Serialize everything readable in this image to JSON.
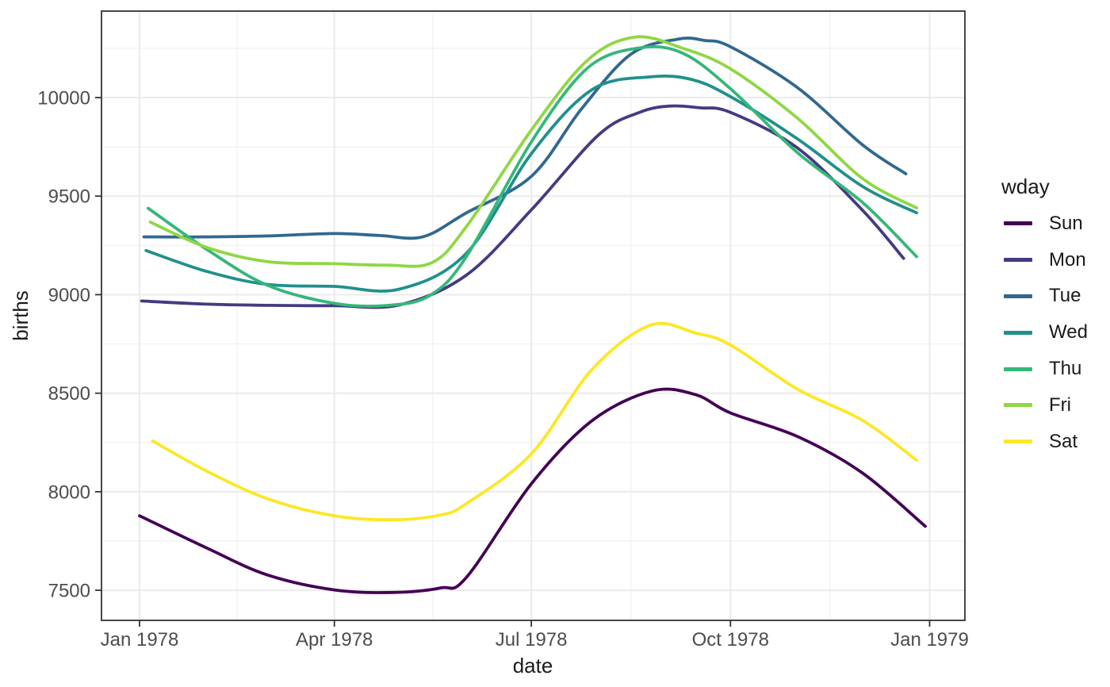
{
  "chart_data": {
    "type": "line",
    "title": "",
    "xlabel": "date",
    "ylabel": "births",
    "legend_title": "wday",
    "legend_position": "right",
    "grid": true,
    "panel": {
      "background": "#FFFFFF",
      "border_color": "#333333",
      "grid_major_color": "#EBEBEB",
      "grid_minor_color": "#EFEFEF",
      "tick_color": "#333333",
      "axis_text_color": "#4D4D4D"
    },
    "x_axis": {
      "ticks": [
        {
          "label": "Jan 1978",
          "day": 1
        },
        {
          "label": "Apr 1978",
          "day": 91
        },
        {
          "label": "Jul 1978",
          "day": 182
        },
        {
          "label": "Oct 1978",
          "day": 274
        },
        {
          "label": "Jan 1979",
          "day": 366
        }
      ],
      "minor_days": [
        46,
        136.5,
        228,
        320
      ],
      "range_days": [
        -17,
        384
      ]
    },
    "y_axis": {
      "ticks": [
        7500,
        8000,
        8500,
        9000,
        9500,
        10000
      ],
      "minor": [
        7750,
        8250,
        8750,
        9250,
        9750,
        10250
      ],
      "ylim": [
        7348,
        10440
      ]
    },
    "series": [
      {
        "name": "Sun",
        "color": "#440154",
        "points": [
          [
            1,
            7878
          ],
          [
            32,
            7715
          ],
          [
            60,
            7578
          ],
          [
            91,
            7502
          ],
          [
            118,
            7489
          ],
          [
            140,
            7512
          ],
          [
            152,
            7565
          ],
          [
            182,
            8040
          ],
          [
            210,
            8360
          ],
          [
            238,
            8512
          ],
          [
            258,
            8492
          ],
          [
            274,
            8400
          ],
          [
            305,
            8280
          ],
          [
            335,
            8095
          ],
          [
            364,
            7825
          ]
        ]
      },
      {
        "name": "Mon",
        "color": "#443A83",
        "points": [
          [
            2,
            8968
          ],
          [
            32,
            8952
          ],
          [
            60,
            8946
          ],
          [
            91,
            8944
          ],
          [
            121,
            8948
          ],
          [
            152,
            9099
          ],
          [
            182,
            9430
          ],
          [
            213,
            9810
          ],
          [
            232,
            9925
          ],
          [
            246,
            9957
          ],
          [
            260,
            9948
          ],
          [
            274,
            9925
          ],
          [
            305,
            9744
          ],
          [
            335,
            9428
          ],
          [
            354,
            9184
          ]
        ]
      },
      {
        "name": "Tue",
        "color": "#31688E",
        "points": [
          [
            3,
            9293
          ],
          [
            32,
            9293
          ],
          [
            60,
            9298
          ],
          [
            91,
            9310
          ],
          [
            112,
            9300
          ],
          [
            132,
            9294
          ],
          [
            152,
            9415
          ],
          [
            182,
            9600
          ],
          [
            205,
            9940
          ],
          [
            228,
            10220
          ],
          [
            250,
            10297
          ],
          [
            262,
            10290
          ],
          [
            274,
            10258
          ],
          [
            305,
            10050
          ],
          [
            335,
            9760
          ],
          [
            355,
            9613
          ]
        ]
      },
      {
        "name": "Wed",
        "color": "#21908C",
        "points": [
          [
            4,
            9224
          ],
          [
            32,
            9118
          ],
          [
            60,
            9052
          ],
          [
            91,
            9042
          ],
          [
            121,
            9028
          ],
          [
            152,
            9210
          ],
          [
            182,
            9715
          ],
          [
            210,
            10040
          ],
          [
            237,
            10105
          ],
          [
            256,
            10092
          ],
          [
            274,
            10005
          ],
          [
            305,
            9790
          ],
          [
            335,
            9549
          ],
          [
            360,
            9415
          ]
        ]
      },
      {
        "name": "Thu",
        "color": "#35B779",
        "points": [
          [
            5,
            9438
          ],
          [
            32,
            9230
          ],
          [
            60,
            9048
          ],
          [
            91,
            8956
          ],
          [
            115,
            8945
          ],
          [
            135,
            8995
          ],
          [
            152,
            9193
          ],
          [
            182,
            9775
          ],
          [
            208,
            10150
          ],
          [
            232,
            10252
          ],
          [
            252,
            10225
          ],
          [
            274,
            10045
          ],
          [
            305,
            9720
          ],
          [
            335,
            9468
          ],
          [
            360,
            9193
          ]
        ]
      },
      {
        "name": "Fri",
        "color": "#8FD744",
        "points": [
          [
            6,
            9368
          ],
          [
            32,
            9240
          ],
          [
            60,
            9168
          ],
          [
            91,
            9157
          ],
          [
            115,
            9150
          ],
          [
            136,
            9162
          ],
          [
            152,
            9345
          ],
          [
            182,
            9835
          ],
          [
            208,
            10190
          ],
          [
            230,
            10307
          ],
          [
            252,
            10250
          ],
          [
            274,
            10146
          ],
          [
            305,
            9895
          ],
          [
            335,
            9589
          ],
          [
            360,
            9440
          ]
        ]
      },
      {
        "name": "Sat",
        "color": "#FDE725",
        "points": [
          [
            7,
            8258
          ],
          [
            32,
            8105
          ],
          [
            60,
            7965
          ],
          [
            91,
            7878
          ],
          [
            118,
            7858
          ],
          [
            140,
            7882
          ],
          [
            152,
            7940
          ],
          [
            182,
            8192
          ],
          [
            210,
            8620
          ],
          [
            237,
            8845
          ],
          [
            258,
            8805
          ],
          [
            274,
            8745
          ],
          [
            305,
            8520
          ],
          [
            335,
            8362
          ],
          [
            360,
            8160
          ]
        ]
      }
    ]
  }
}
